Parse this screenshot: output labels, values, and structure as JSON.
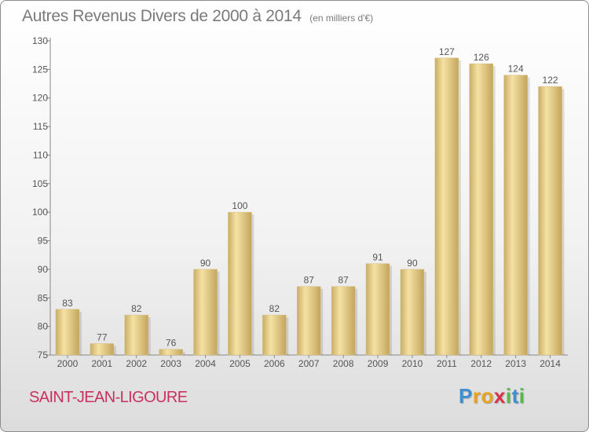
{
  "title": "Autres Revenus Divers de 2000 à 2014",
  "subtitle": "(en milliers d'€)",
  "place": "SAINT-JEAN-LIGOURE",
  "logo": {
    "letters": [
      "P",
      "r",
      "o",
      "x",
      "i",
      "t",
      "i"
    ],
    "colors": [
      "#3d8fcf",
      "#e8a21f",
      "#e8a21f",
      "#d8324b",
      "#58b847",
      "#3d8fcf",
      "#58b847"
    ]
  },
  "colors": {
    "bar_light": "#f6e3a4",
    "bar_dark": "#c7aa62",
    "axis": "#888888",
    "text": "#555555",
    "place": "#c8325f"
  },
  "chart_data": {
    "type": "bar",
    "title": "Autres Revenus Divers de 2000 à 2014",
    "subtitle": "(en milliers d'€)",
    "categories": [
      "2000",
      "2001",
      "2002",
      "2003",
      "2004",
      "2005",
      "2006",
      "2007",
      "2008",
      "2009",
      "2010",
      "2011",
      "2012",
      "2013",
      "2014"
    ],
    "values": [
      83,
      77,
      82,
      76,
      90,
      100,
      82,
      87,
      87,
      91,
      90,
      127,
      126,
      124,
      122
    ],
    "ylim": [
      75,
      130
    ],
    "yticks": [
      75,
      80,
      85,
      90,
      95,
      100,
      105,
      110,
      115,
      120,
      125,
      130
    ],
    "grid": false,
    "legend": "none"
  }
}
